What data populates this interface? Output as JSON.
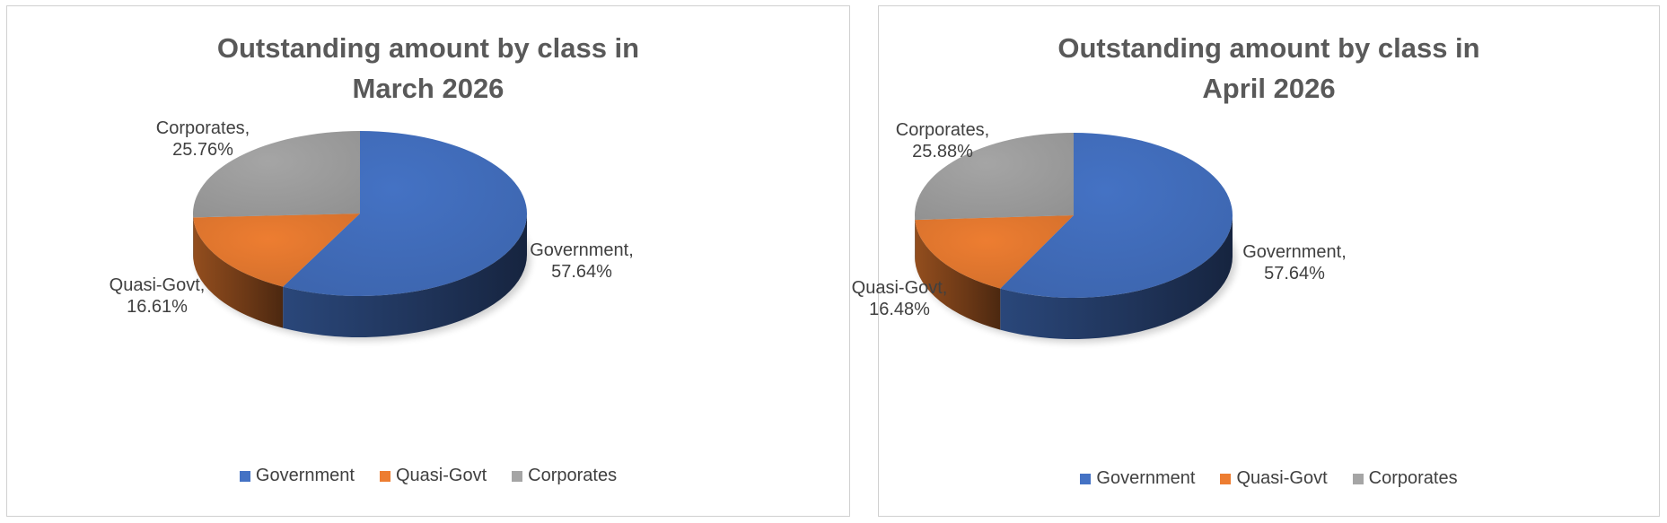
{
  "colors": {
    "Government": "#4472c4",
    "Quasi-Govt": "#ed7d31",
    "Corporates": "#a5a5a5"
  },
  "chart_data": [
    {
      "type": "pie",
      "title_lines": [
        "Outstanding amount by class in",
        "March 2026"
      ],
      "categories": [
        "Government",
        "Quasi-Govt",
        "Corporates"
      ],
      "values": [
        57.64,
        16.61,
        25.76
      ],
      "data_labels": [
        {
          "name": "Government,",
          "value": "57.64%"
        },
        {
          "name": "Quasi-Govt,",
          "value": "16.61%"
        },
        {
          "name": "Corporates,",
          "value": "25.76%"
        }
      ],
      "legend": [
        "Government",
        "Quasi-Govt",
        "Corporates"
      ],
      "legend_position": "bottom",
      "style": "3d"
    },
    {
      "type": "pie",
      "title_lines": [
        "Outstanding amount by class in",
        "April 2026"
      ],
      "categories": [
        "Government",
        "Quasi-Govt",
        "Corporates"
      ],
      "values": [
        57.64,
        16.48,
        25.88
      ],
      "data_labels": [
        {
          "name": "Government,",
          "value": "57.64%"
        },
        {
          "name": "Quasi-Govt,",
          "value": "16.48%"
        },
        {
          "name": "Corporates,",
          "value": "25.88%"
        }
      ],
      "legend": [
        "Government",
        "Quasi-Govt",
        "Corporates"
      ],
      "legend_position": "bottom",
      "style": "3d"
    }
  ]
}
